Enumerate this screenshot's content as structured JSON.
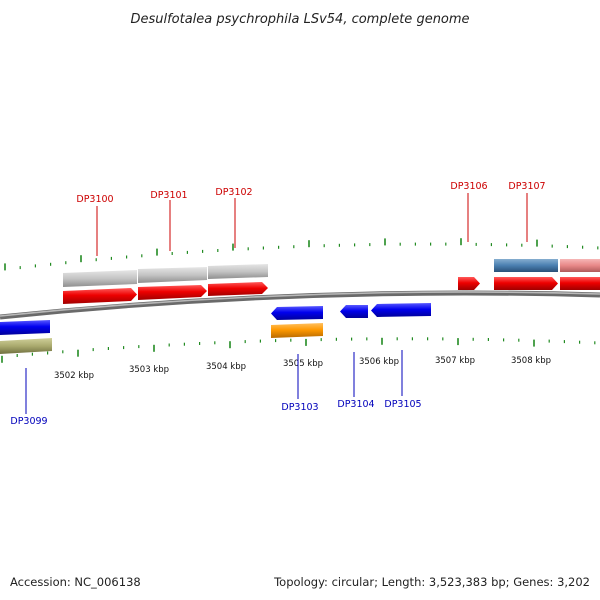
{
  "title": "Desulfotalea psychrophila LSv54, complete genome",
  "footer": {
    "accession": "Accession: NC_006138",
    "summary": "Topology: circular; Length: 3,523,383 bp; Genes: 3,202"
  },
  "scale_ticks": [
    {
      "label": "3502 kbp",
      "kbp": 3502
    },
    {
      "label": "3503 kbp",
      "kbp": 3503
    },
    {
      "label": "3504 kbp",
      "kbp": 3504
    },
    {
      "label": "3505 kbp",
      "kbp": 3505
    },
    {
      "label": "3506 kbp",
      "kbp": 3506
    },
    {
      "label": "3507 kbp",
      "kbp": 3507
    },
    {
      "label": "3508 kbp",
      "kbp": 3508
    }
  ],
  "genes_forward": [
    {
      "id": "DP3100"
    },
    {
      "id": "DP3101"
    },
    {
      "id": "DP3102"
    },
    {
      "id": "DP3106"
    },
    {
      "id": "DP3107"
    }
  ],
  "genes_reverse": [
    {
      "id": "DP3099"
    },
    {
      "id": "DP3103"
    },
    {
      "id": "DP3104"
    },
    {
      "id": "DP3105"
    }
  ],
  "colors": {
    "forward_gene": "#dd0000",
    "reverse_gene": "#0000cc",
    "forward_label": "#cc0000",
    "reverse_label": "#0000bb",
    "tick": "#228b22",
    "backbone": "#8a8a8a",
    "feature_gray": "#bdbdbd",
    "feature_orange": "#ff9900",
    "feature_olive": "#a8a86a",
    "feature_steelblue": "#4a7fb0",
    "feature_pink": "#e88888"
  }
}
